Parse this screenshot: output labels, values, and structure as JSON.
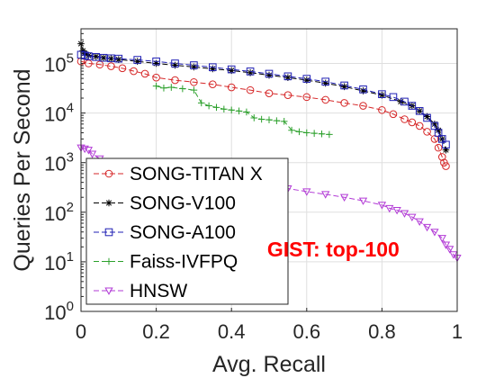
{
  "chart_data": {
    "type": "line",
    "title": "",
    "xlabel": "Avg. Recall",
    "ylabel": "Queries Per Second",
    "xlim": [
      0,
      1
    ],
    "ylim": [
      1,
      500000
    ],
    "yscale": "log",
    "grid": true,
    "legend_position": "bottom-left",
    "x_ticks": [
      {
        "value": 0,
        "label": "0"
      },
      {
        "value": 0.2,
        "label": "0.2"
      },
      {
        "value": 0.4,
        "label": "0.4"
      },
      {
        "value": 0.6,
        "label": "0.6"
      },
      {
        "value": 0.8,
        "label": "0.8"
      },
      {
        "value": 1,
        "label": "1"
      }
    ],
    "y_ticks": [
      {
        "value": 1,
        "base": "10",
        "exp": "0"
      },
      {
        "value": 10,
        "base": "10",
        "exp": "1"
      },
      {
        "value": 100,
        "base": "10",
        "exp": "2"
      },
      {
        "value": 1000,
        "base": "10",
        "exp": "3"
      },
      {
        "value": 10000,
        "base": "10",
        "exp": "4"
      },
      {
        "value": 100000,
        "base": "10",
        "exp": "5"
      }
    ],
    "annotation": {
      "text": "GIST: top-100",
      "color": "#ff0000",
      "x": 0.55,
      "y": 10
    },
    "series": [
      {
        "name": "SONG-TITAN X",
        "color": "#d62728",
        "marker": "circle",
        "x": [
          0.0,
          0.02,
          0.05,
          0.08,
          0.11,
          0.14,
          0.17,
          0.2,
          0.25,
          0.3,
          0.35,
          0.4,
          0.45,
          0.5,
          0.55,
          0.6,
          0.65,
          0.7,
          0.75,
          0.8,
          0.83,
          0.86,
          0.88,
          0.9,
          0.92,
          0.94,
          0.95,
          0.96,
          0.965,
          0.97
        ],
        "y": [
          110000,
          100000,
          95000,
          88000,
          80000,
          70000,
          62000,
          52000,
          46000,
          42000,
          38000,
          33000,
          29000,
          25000,
          23000,
          21000,
          18500,
          16000,
          14000,
          11500,
          9500,
          7500,
          6500,
          5500,
          4200,
          3000,
          2000,
          1300,
          1000,
          850
        ]
      },
      {
        "name": "SONG-V100",
        "color": "#000000",
        "marker": "star",
        "x": [
          0.0,
          0.005,
          0.01,
          0.02,
          0.04,
          0.06,
          0.08,
          0.1,
          0.15,
          0.2,
          0.25,
          0.3,
          0.35,
          0.4,
          0.45,
          0.5,
          0.55,
          0.6,
          0.65,
          0.7,
          0.75,
          0.8,
          0.85,
          0.88,
          0.9,
          0.92,
          0.94,
          0.95,
          0.96,
          0.97
        ],
        "y": [
          250000,
          180000,
          160000,
          145000,
          138000,
          130000,
          125000,
          120000,
          110000,
          100000,
          92000,
          85000,
          78000,
          72000,
          65000,
          58000,
          52000,
          46000,
          40000,
          34000,
          28000,
          23000,
          17000,
          14000,
          11000,
          8500,
          6000,
          4500,
          3000,
          1800
        ]
      },
      {
        "name": "SONG-A100",
        "color": "#1f1fb4",
        "marker": "square",
        "x": [
          0.0,
          0.01,
          0.02,
          0.04,
          0.06,
          0.08,
          0.1,
          0.15,
          0.2,
          0.25,
          0.3,
          0.35,
          0.4,
          0.45,
          0.5,
          0.55,
          0.6,
          0.65,
          0.7,
          0.75,
          0.8,
          0.83,
          0.86,
          0.88,
          0.9,
          0.92,
          0.94,
          0.95,
          0.96,
          0.97
        ],
        "y": [
          150000,
          145000,
          140000,
          135000,
          130000,
          127000,
          125000,
          118000,
          110000,
          100000,
          92000,
          84000,
          76000,
          69000,
          62000,
          55000,
          49000,
          43000,
          36000,
          30000,
          24000,
          21000,
          17000,
          14000,
          11000,
          8000,
          5500,
          4000,
          3000,
          2300
        ]
      },
      {
        "name": "Faiss-IVFPQ",
        "color": "#2ca02c",
        "marker": "plus",
        "x": [
          0.2,
          0.22,
          0.24,
          0.27,
          0.3,
          0.32,
          0.34,
          0.36,
          0.38,
          0.4,
          0.42,
          0.44,
          0.46,
          0.48,
          0.5,
          0.52,
          0.54,
          0.56,
          0.58,
          0.6,
          0.62,
          0.64,
          0.66
        ],
        "y": [
          35000,
          32000,
          33000,
          31000,
          29000,
          16000,
          14000,
          13000,
          12000,
          11500,
          11000,
          10500,
          8000,
          7500,
          7300,
          7000,
          6800,
          4500,
          4200,
          4000,
          3900,
          3800,
          3700
        ]
      },
      {
        "name": "HNSW",
        "color": "#b23bd6",
        "marker": "triangle-down",
        "x": [
          0.0,
          0.01,
          0.02,
          0.03,
          0.05,
          0.07,
          0.1,
          0.15,
          0.2,
          0.3,
          0.4,
          0.5,
          0.55,
          0.6,
          0.65,
          0.7,
          0.75,
          0.8,
          0.82,
          0.84,
          0.86,
          0.88,
          0.9,
          0.92,
          0.94,
          0.96,
          0.97,
          0.98,
          0.99,
          1.0
        ],
        "y": [
          2000,
          1900,
          1800,
          1500,
          1200,
          1000,
          900,
          800,
          700,
          550,
          450,
          350,
          300,
          260,
          230,
          200,
          170,
          140,
          120,
          110,
          95,
          80,
          65,
          50,
          40,
          30,
          22,
          18,
          14,
          12
        ]
      }
    ]
  }
}
